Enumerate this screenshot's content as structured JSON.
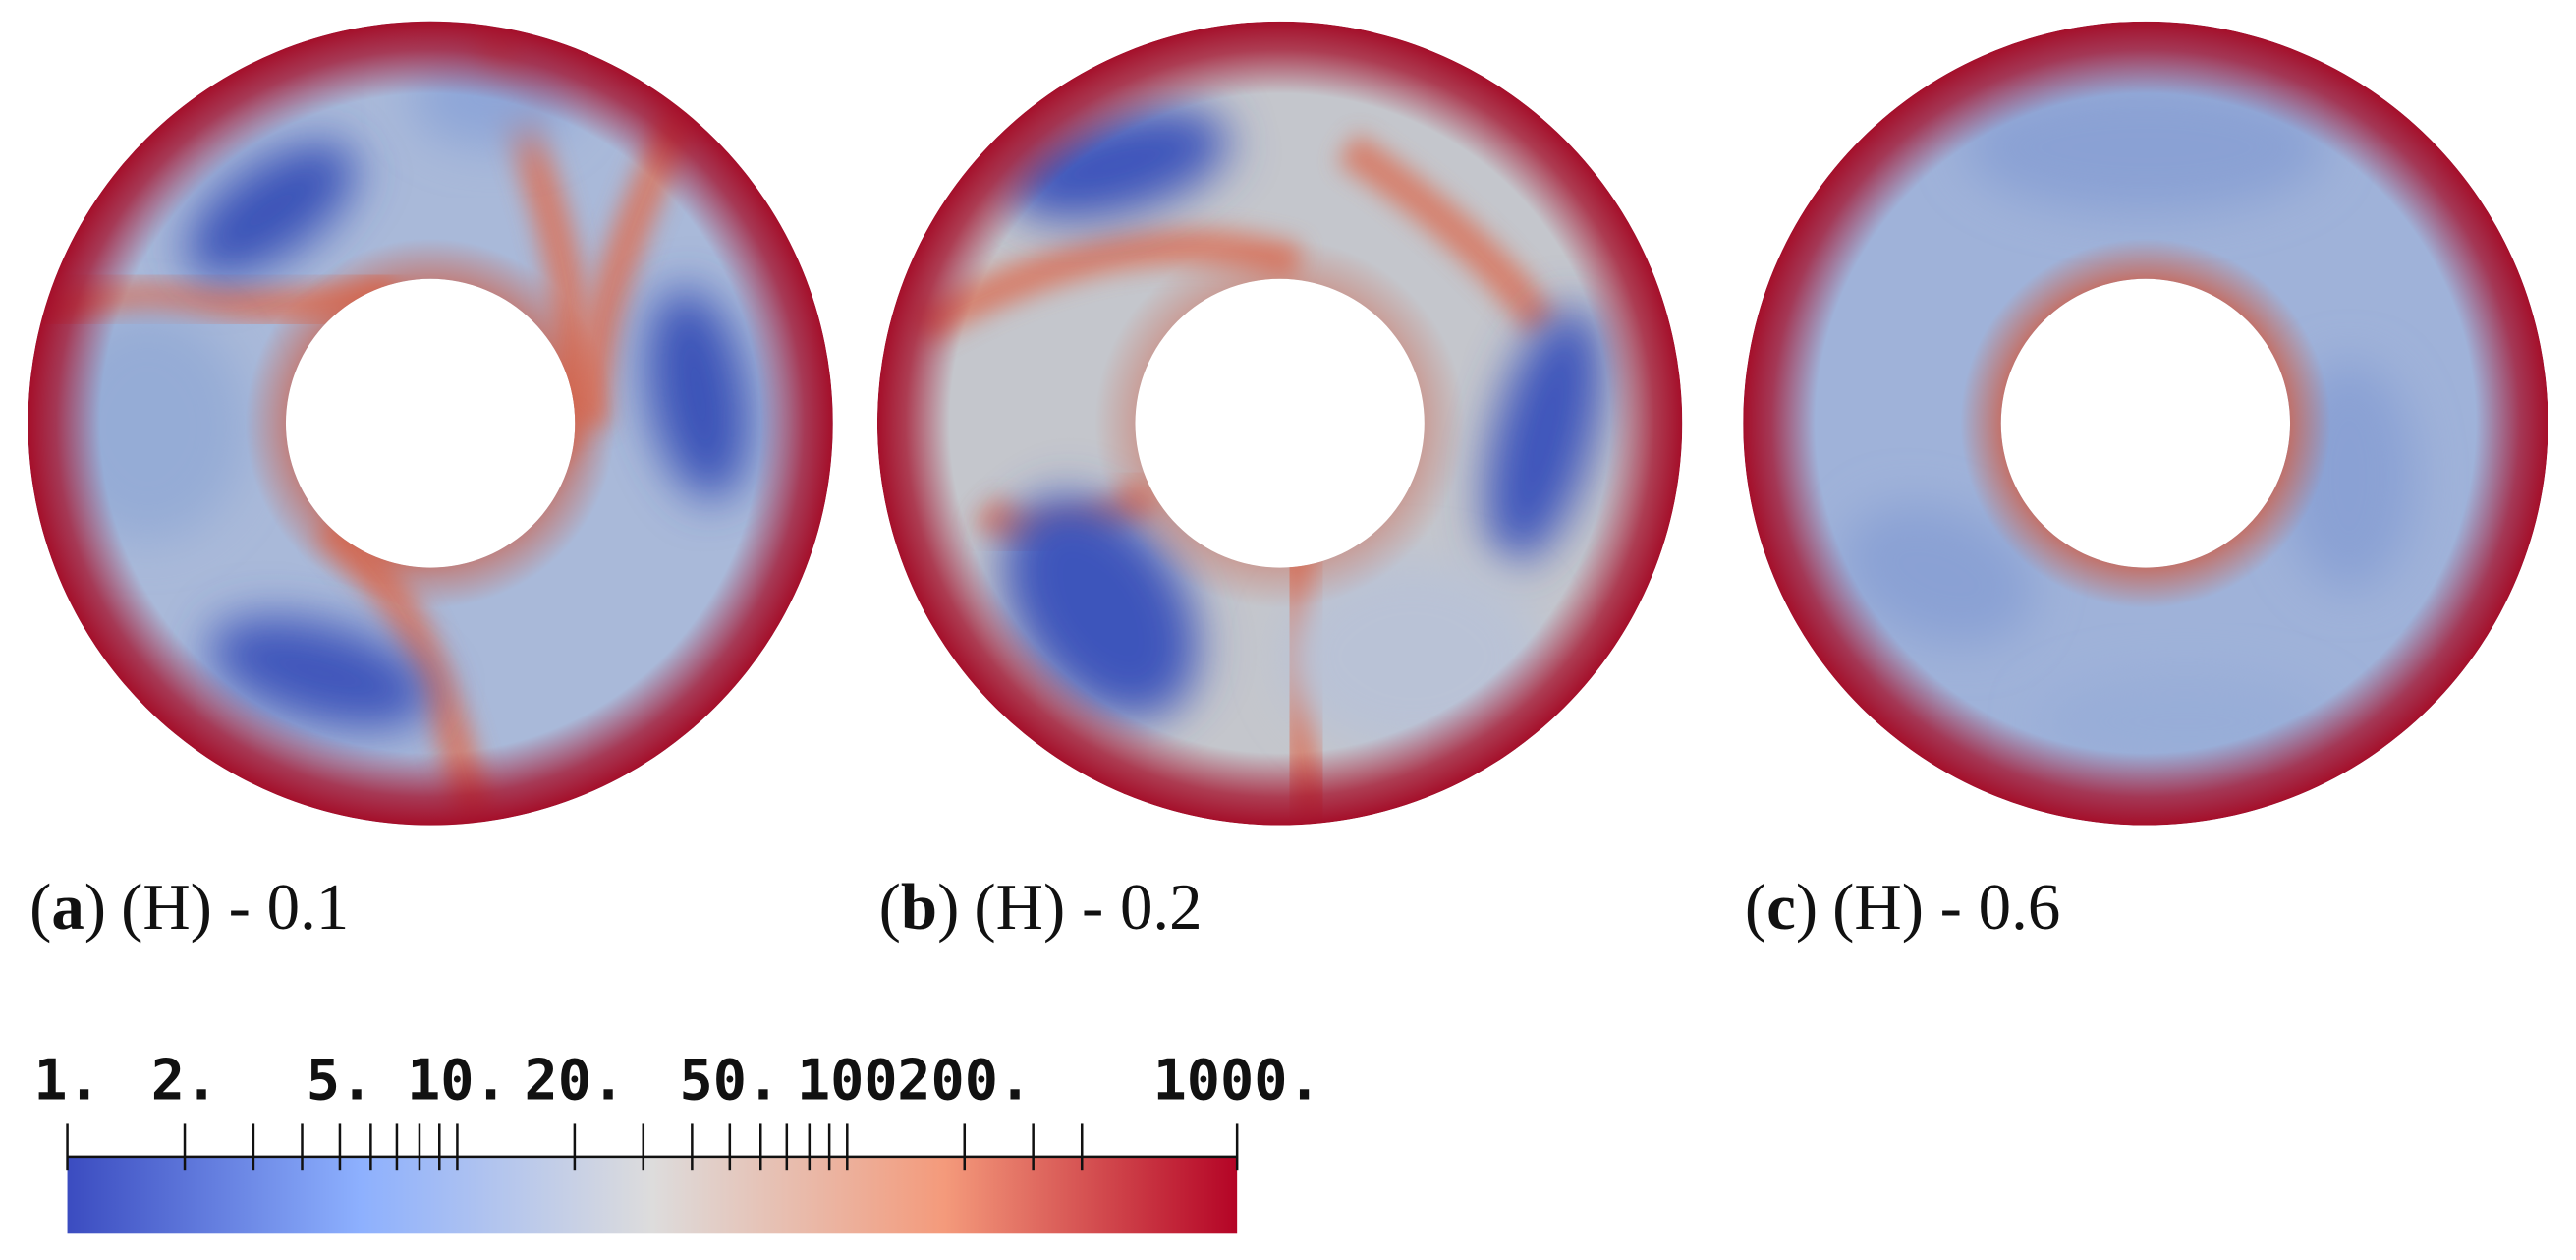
{
  "panels": [
    {
      "open": "(",
      "letter": "a",
      "close": ")",
      "text": "(H) - 0.1"
    },
    {
      "open": "(",
      "letter": "b",
      "close": ")",
      "text": "(H) - 0.2"
    },
    {
      "open": "(",
      "letter": "c",
      "close": ")",
      "text": "(H) - 0.6"
    }
  ],
  "colorbar": {
    "scale": "log",
    "range": [
      1,
      1000
    ],
    "colors": [
      "#3b4cc0",
      "#8db0fe",
      "#dddcdc",
      "#f49a7b",
      "#b40426"
    ],
    "ticks": [
      {
        "value": 1,
        "label": "1."
      },
      {
        "value": 2,
        "label": "2."
      },
      {
        "value": 5,
        "label": "5."
      },
      {
        "value": 10,
        "label": "10."
      },
      {
        "value": 20,
        "label": "20."
      },
      {
        "value": 50,
        "label": "50."
      },
      {
        "value": 100,
        "label": "100"
      },
      {
        "value": 200,
        "label": "200."
      },
      {
        "value": 1000,
        "label": "1000."
      }
    ],
    "minor_ticks": [
      3,
      4,
      6,
      7,
      8,
      9,
      30,
      40,
      60,
      70,
      80,
      90,
      300,
      400
    ]
  }
}
